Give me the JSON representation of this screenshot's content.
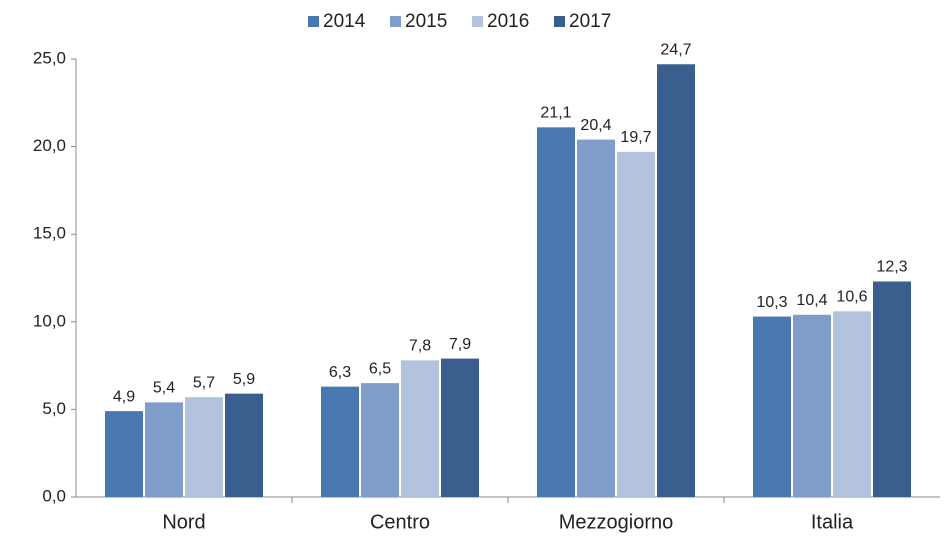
{
  "chart_data": {
    "type": "bar",
    "categories": [
      "Nord",
      "Centro",
      "Mezzogiorno",
      "Italia"
    ],
    "series": [
      {
        "name": "2014",
        "color": "#4a78b0",
        "values": [
          4.9,
          6.3,
          21.1,
          10.3
        ],
        "value_labels": [
          "4,9",
          "6,3",
          "21,1",
          "10,3"
        ]
      },
      {
        "name": "2015",
        "color": "#7f9ccb",
        "values": [
          5.4,
          6.5,
          20.4,
          10.4
        ],
        "value_labels": [
          "5,4",
          "6,5",
          "20,4",
          "10,4"
        ]
      },
      {
        "name": "2016",
        "color": "#b3c3de",
        "values": [
          5.7,
          7.8,
          19.7,
          10.6
        ],
        "value_labels": [
          "5,7",
          "7,8",
          "19,7",
          "10,6"
        ]
      },
      {
        "name": "2017",
        "color": "#3a5f8f",
        "values": [
          5.9,
          7.9,
          24.7,
          12.3
        ],
        "value_labels": [
          "5,9",
          "7,9",
          "24,7",
          "12,3"
        ]
      }
    ],
    "ylim": [
      0,
      25
    ],
    "yticks": [
      {
        "value": 0,
        "label": "0,0"
      },
      {
        "value": 5,
        "label": "5,0"
      },
      {
        "value": 10,
        "label": "10,0"
      },
      {
        "value": 15,
        "label": "15,0"
      },
      {
        "value": 20,
        "label": "20,0"
      },
      {
        "value": 25,
        "label": "25,0"
      }
    ],
    "legend": "top"
  }
}
